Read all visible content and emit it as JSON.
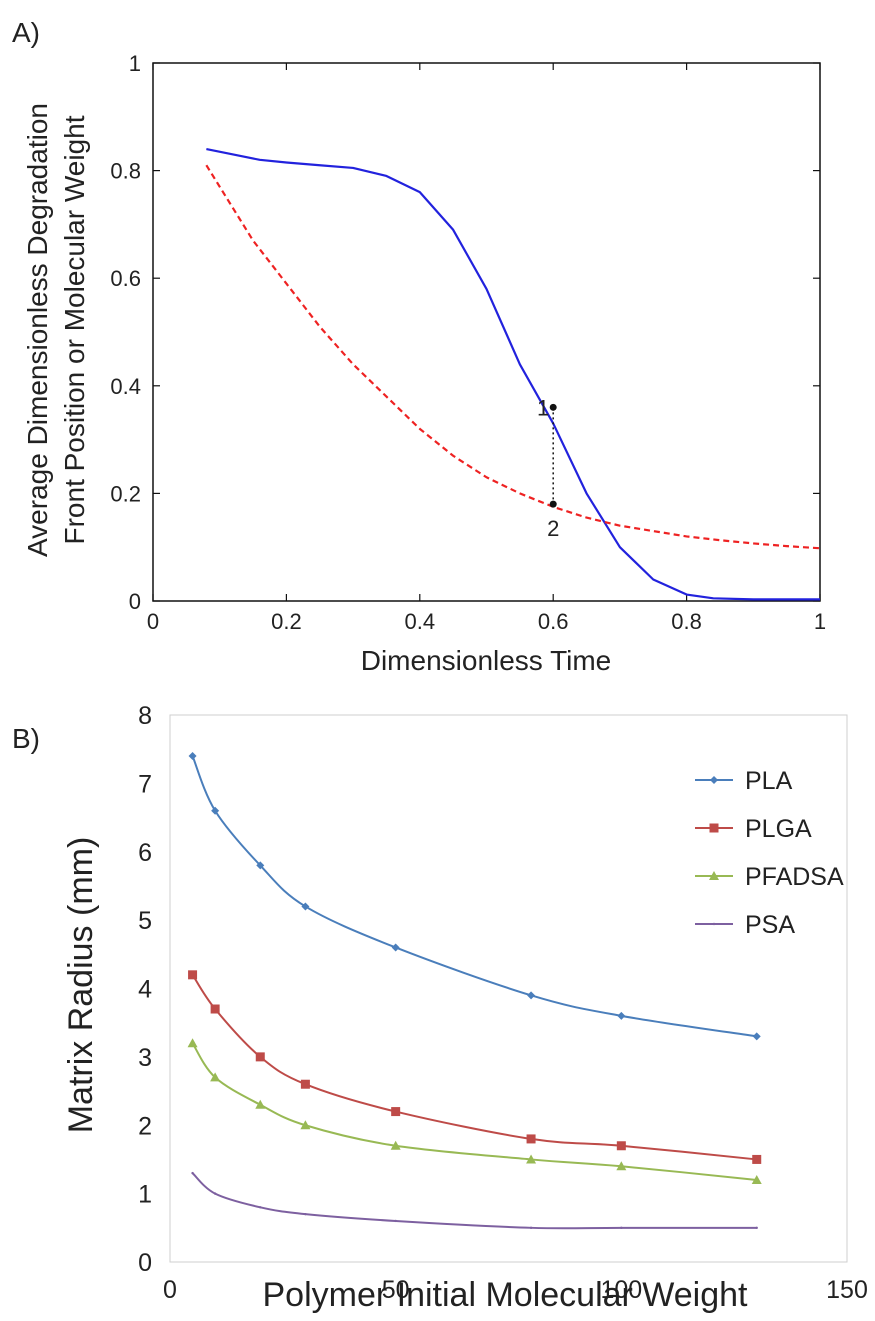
{
  "chart_data": [
    {
      "panel_label": "A)",
      "type": "line",
      "xlabel": "Dimensionless Time",
      "ylabel_lines": [
        "Average Dimensionless Degradation",
        "Front Position or Molecular Weight"
      ],
      "xlim": [
        0,
        1
      ],
      "ylim": [
        0,
        1
      ],
      "x_ticks": [
        0,
        0.2,
        0.4,
        0.6,
        0.8,
        1
      ],
      "y_ticks": [
        0,
        0.2,
        0.4,
        0.6,
        0.8,
        1
      ],
      "x_tick_labels": [
        "0",
        "0.2",
        "0.4",
        "0.6",
        "0.8",
        "1"
      ],
      "y_tick_labels": [
        "0",
        "0.2",
        "0.4",
        "0.6",
        "0.8",
        "1"
      ],
      "series": [
        {
          "style": "solid",
          "color": "#2222dd",
          "x": [
            0.08,
            0.12,
            0.16,
            0.2,
            0.25,
            0.3,
            0.35,
            0.4,
            0.45,
            0.5,
            0.55,
            0.6,
            0.65,
            0.7,
            0.75,
            0.8,
            0.84,
            0.9,
            1.0
          ],
          "y": [
            0.84,
            0.83,
            0.82,
            0.815,
            0.81,
            0.805,
            0.79,
            0.76,
            0.69,
            0.58,
            0.44,
            0.33,
            0.2,
            0.1,
            0.04,
            0.012,
            0.005,
            0.003,
            0.003
          ]
        },
        {
          "style": "dashed",
          "color": "#ee2222",
          "x": [
            0.08,
            0.15,
            0.2,
            0.25,
            0.3,
            0.35,
            0.4,
            0.45,
            0.5,
            0.55,
            0.6,
            0.65,
            0.7,
            0.75,
            0.8,
            0.85,
            0.9,
            0.95,
            1.0
          ],
          "y": [
            0.81,
            0.67,
            0.59,
            0.51,
            0.44,
            0.38,
            0.32,
            0.27,
            0.23,
            0.2,
            0.175,
            0.155,
            0.14,
            0.13,
            0.12,
            0.113,
            0.107,
            0.102,
            0.098
          ]
        }
      ],
      "annotations": [
        {
          "label": "1",
          "x": 0.6,
          "y": 0.36
        },
        {
          "label": "2",
          "x": 0.6,
          "y": 0.18
        }
      ],
      "connector": {
        "x": 0.6,
        "y1": 0.36,
        "y2": 0.18,
        "style": "dotted"
      }
    },
    {
      "panel_label": "B)",
      "type": "line",
      "xlabel": "Polymer Initial Molecular Weight",
      "ylabel": "Matrix Radius (mm)",
      "xlim": [
        0,
        150
      ],
      "ylim": [
        0,
        8
      ],
      "x_ticks": [
        0,
        50,
        100,
        150
      ],
      "y_ticks": [
        0,
        1,
        2,
        3,
        4,
        5,
        6,
        7,
        8
      ],
      "x_tick_labels": [
        "0",
        "50",
        "100",
        "150"
      ],
      "y_tick_labels": [
        "0",
        "1",
        "2",
        "3",
        "4",
        "5",
        "6",
        "7",
        "8"
      ],
      "legend_position": "top-right",
      "x": [
        5,
        10,
        20,
        30,
        50,
        80,
        100,
        130
      ],
      "series": [
        {
          "name": "PLA",
          "color": "#4a7ebb",
          "marker": "diamond",
          "values": [
            7.4,
            6.6,
            5.8,
            5.2,
            4.6,
            3.9,
            3.6,
            3.3
          ]
        },
        {
          "name": "PLGA",
          "color": "#be4b48",
          "marker": "square",
          "values": [
            4.2,
            3.7,
            3.0,
            2.6,
            2.2,
            1.8,
            1.7,
            1.5
          ]
        },
        {
          "name": "PFADSA",
          "color": "#98b954",
          "marker": "triangle",
          "values": [
            3.2,
            2.7,
            2.3,
            2.0,
            1.7,
            1.5,
            1.4,
            1.2
          ]
        },
        {
          "name": "PSA",
          "color": "#7d60a0",
          "marker": "none",
          "values": [
            1.3,
            1.0,
            0.8,
            0.7,
            0.6,
            0.5,
            0.5,
            0.5
          ]
        }
      ]
    }
  ]
}
